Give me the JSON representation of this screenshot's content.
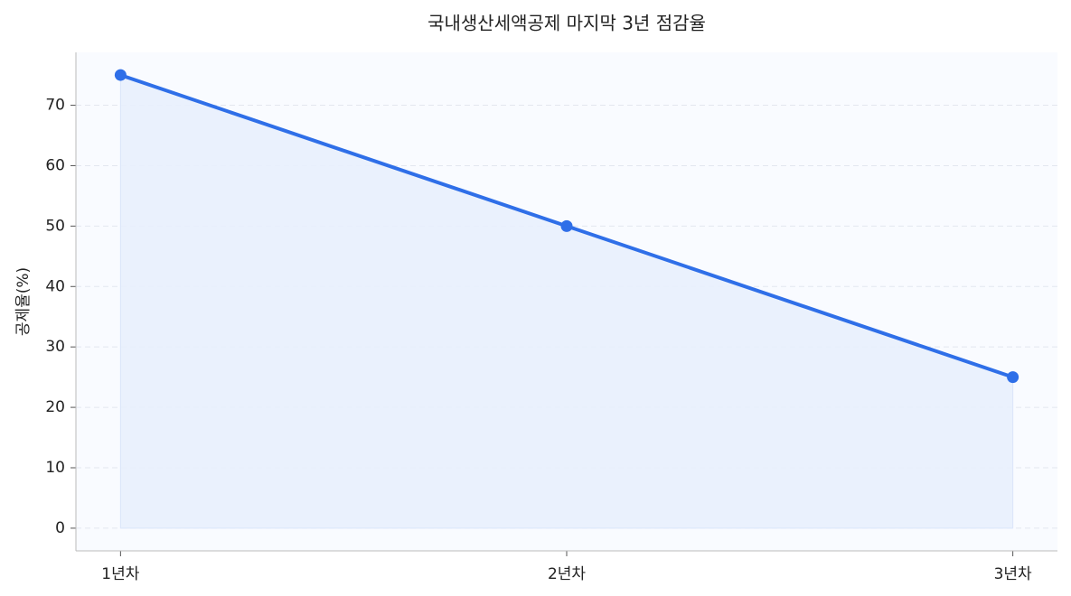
{
  "chart_data": {
    "type": "line",
    "title": "국내생산세액공제 마지막 3년 점감율",
    "y_label": "공제율(%)",
    "categories": [
      "1년차",
      "2년차",
      "3년차"
    ],
    "series": [
      {
        "name": "공제율",
        "color": "#2f6fe8",
        "values": [
          75,
          50,
          25
        ]
      }
    ],
    "area_fill": "#e8effd",
    "ylim": [
      -3.75,
      78.75
    ],
    "yticks": [
      0,
      10,
      20,
      30,
      40,
      50,
      60,
      70
    ],
    "grid": true
  }
}
